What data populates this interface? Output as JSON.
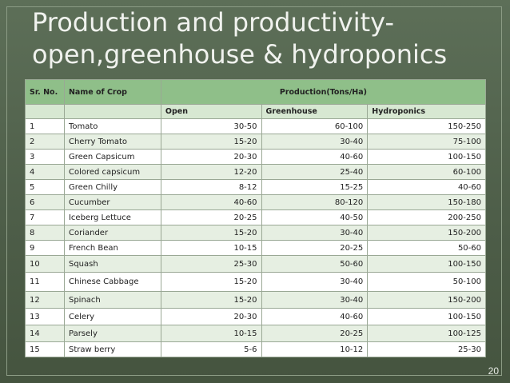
{
  "title": {
    "line1": "Production and productivity-",
    "line2": "open,greenhouse & hydroponics"
  },
  "table": {
    "header": {
      "sr": "Sr. No.",
      "crop": "Name of Crop",
      "production": "Production(Tons/Ha)"
    },
    "subheader": {
      "open": "Open",
      "greenhouse": "Greenhouse",
      "hydroponics": "Hydroponics"
    },
    "rows": [
      {
        "sr": "1",
        "crop": "Tomato",
        "open": "30-50",
        "greenhouse": "60-100",
        "hydro": "150-250"
      },
      {
        "sr": "2",
        "crop": "Cherry Tomato",
        "open": "15-20",
        "greenhouse": "30-40",
        "hydro": "75-100"
      },
      {
        "sr": "3",
        "crop": "Green Capsicum",
        "open": "20-30",
        "greenhouse": "40-60",
        "hydro": "100-150"
      },
      {
        "sr": "4",
        "crop": "Colored capsicum",
        "open": "12-20",
        "greenhouse": "25-40",
        "hydro": "60-100"
      },
      {
        "sr": "5",
        "crop": "Green Chilly",
        "open": "8-12",
        "greenhouse": "15-25",
        "hydro": "40-60"
      },
      {
        "sr": "6",
        "crop": "Cucumber",
        "open": "40-60",
        "greenhouse": "80-120",
        "hydro": "150-180"
      },
      {
        "sr": "7",
        "crop": "Iceberg Lettuce",
        "open": "20-25",
        "greenhouse": "40-50",
        "hydro": "200-250"
      },
      {
        "sr": "8",
        "crop": "Coriander",
        "open": "15-20",
        "greenhouse": "30-40",
        "hydro": "150-200"
      },
      {
        "sr": "9",
        "crop": "French Bean",
        "open": "10-15",
        "greenhouse": "20-25",
        "hydro": "50-60"
      },
      {
        "sr": "10",
        "crop": "Squash",
        "open": "25-30",
        "greenhouse": "50-60",
        "hydro": "100-150"
      },
      {
        "sr": "11",
        "crop": "Chinese Cabbage",
        "open": "15-20",
        "greenhouse": "30-40",
        "hydro": "50-100"
      },
      {
        "sr": "12",
        "crop": "Spinach",
        "open": "15-20",
        "greenhouse": "30-40",
        "hydro": "150-200"
      },
      {
        "sr": "13",
        "crop": "Celery",
        "open": "20-30",
        "greenhouse": "40-60",
        "hydro": "100-150"
      },
      {
        "sr": "14",
        "crop": "Parsely",
        "open": "10-15",
        "greenhouse": "20-25",
        "hydro": "100-125"
      },
      {
        "sr": "15",
        "crop": "Straw berry",
        "open": "5-6",
        "greenhouse": "10-12",
        "hydro": "25-30"
      }
    ]
  },
  "page_number": "20",
  "colors": {
    "background": "#4e5f4a",
    "header": "#8fbf89",
    "subheader": "#d7e8d2",
    "row_alt": "#e6efe2"
  }
}
